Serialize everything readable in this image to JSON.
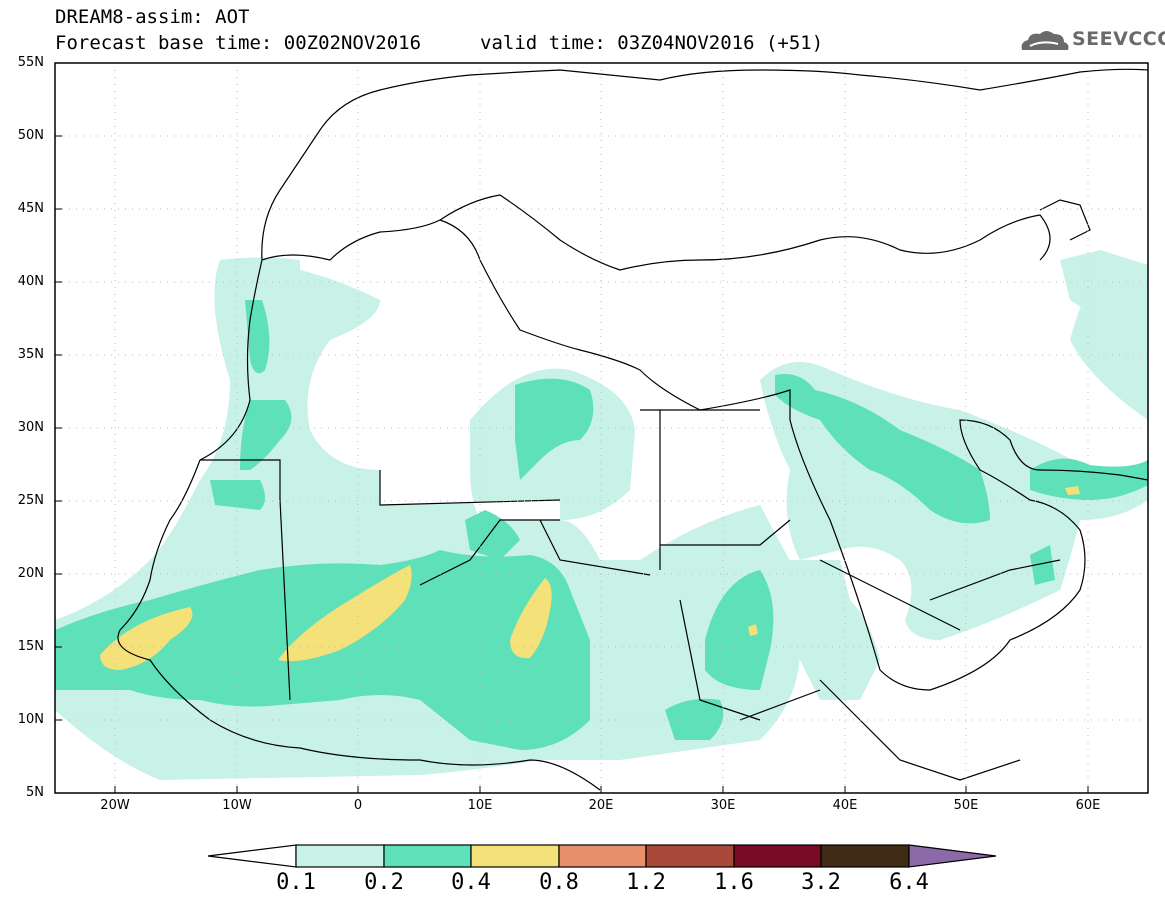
{
  "header": {
    "line1": "DREAM8-assim: AOT",
    "line2": "Forecast base time: 00Z02NOV2016",
    "valid": "valid time: 03Z04NOV2016 (+51)",
    "logo_text": "SEEVCCC"
  },
  "map": {
    "lat_labels": [
      "55N",
      "50N",
      "45N",
      "40N",
      "35N",
      "30N",
      "25N",
      "20N",
      "15N",
      "10N",
      "5N"
    ],
    "lon_labels": [
      "20W",
      "10W",
      "0",
      "10E",
      "20E",
      "30E",
      "40E",
      "50E",
      "60E"
    ],
    "extent": {
      "lon": [
        -25,
        65
      ],
      "lat": [
        5,
        55
      ]
    },
    "field": "AOT"
  },
  "colorbar": {
    "labels": [
      "0.1",
      "0.2",
      "0.4",
      "0.8",
      "1.2",
      "1.6",
      "3.2",
      "6.4"
    ],
    "colors": [
      "#ffffff",
      "#c8f1e8",
      "#5ee0b8",
      "#f5e17a",
      "#e8906a",
      "#a8483a",
      "#7a0b26",
      "#3f2a16",
      "#8c6aa8"
    ]
  }
}
